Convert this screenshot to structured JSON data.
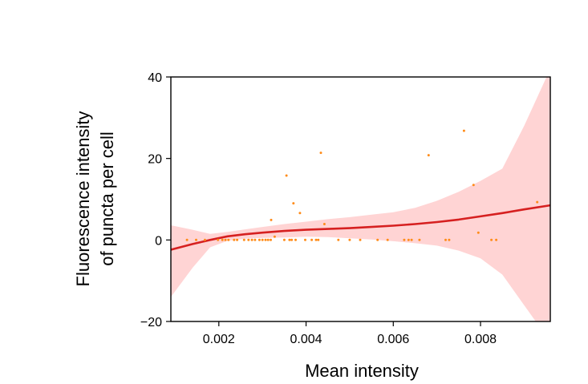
{
  "chart_data": {
    "type": "scatter",
    "title": "",
    "xlabel": "Mean intensity",
    "ylabel_lines": [
      "Fluorescence intensity",
      "of puncta per cell"
    ],
    "xlim": [
      0.0009,
      0.0096
    ],
    "ylim": [
      -20,
      40
    ],
    "xticks": [
      0.002,
      0.004,
      0.006,
      0.008
    ],
    "xtick_labels": [
      "0.002",
      "0.004",
      "0.006",
      "0.008"
    ],
    "yticks": [
      -20,
      0,
      20,
      40
    ],
    "ytick_labels": [
      "−20",
      "0",
      "20",
      "40"
    ],
    "grid": false,
    "colors": {
      "points": "#ff8c1a",
      "fit_line": "#d62020",
      "band": "#ffcccc"
    },
    "points": [
      {
        "x": 0.00127,
        "y": 0
      },
      {
        "x": 0.00148,
        "y": 0
      },
      {
        "x": 0.00168,
        "y": 0
      },
      {
        "x": 0.00198,
        "y": 0
      },
      {
        "x": 0.00208,
        "y": 0
      },
      {
        "x": 0.00215,
        "y": 0
      },
      {
        "x": 0.00222,
        "y": 0
      },
      {
        "x": 0.00235,
        "y": 0
      },
      {
        "x": 0.00242,
        "y": 0
      },
      {
        "x": 0.00258,
        "y": 0
      },
      {
        "x": 0.00268,
        "y": 0
      },
      {
        "x": 0.00276,
        "y": 0
      },
      {
        "x": 0.00283,
        "y": 0
      },
      {
        "x": 0.00293,
        "y": 0
      },
      {
        "x": 0.003,
        "y": 0
      },
      {
        "x": 0.00307,
        "y": 0
      },
      {
        "x": 0.00313,
        "y": 0
      },
      {
        "x": 0.00319,
        "y": 0
      },
      {
        "x": 0.0032,
        "y": 4.9
      },
      {
        "x": 0.00328,
        "y": 0.8
      },
      {
        "x": 0.0035,
        "y": 0
      },
      {
        "x": 0.00355,
        "y": 15.8
      },
      {
        "x": 0.00362,
        "y": 0
      },
      {
        "x": 0.00367,
        "y": 0
      },
      {
        "x": 0.00371,
        "y": 9.0
      },
      {
        "x": 0.00376,
        "y": 0
      },
      {
        "x": 0.00386,
        "y": 6.6
      },
      {
        "x": 0.00398,
        "y": 0
      },
      {
        "x": 0.00413,
        "y": 0
      },
      {
        "x": 0.00423,
        "y": 0
      },
      {
        "x": 0.00428,
        "y": 0
      },
      {
        "x": 0.00434,
        "y": 21.4
      },
      {
        "x": 0.00442,
        "y": 3.9
      },
      {
        "x": 0.00474,
        "y": 0
      },
      {
        "x": 0.005,
        "y": 0
      },
      {
        "x": 0.00524,
        "y": 0
      },
      {
        "x": 0.00564,
        "y": 0
      },
      {
        "x": 0.00587,
        "y": 0
      },
      {
        "x": 0.00625,
        "y": 0
      },
      {
        "x": 0.00635,
        "y": 0
      },
      {
        "x": 0.00642,
        "y": 0
      },
      {
        "x": 0.0066,
        "y": 0
      },
      {
        "x": 0.00681,
        "y": 20.8
      },
      {
        "x": 0.0072,
        "y": 0
      },
      {
        "x": 0.00728,
        "y": 0
      },
      {
        "x": 0.00762,
        "y": 26.8
      },
      {
        "x": 0.00784,
        "y": 13.5
      },
      {
        "x": 0.00795,
        "y": 1.8
      },
      {
        "x": 0.00825,
        "y": 0
      },
      {
        "x": 0.00836,
        "y": 0
      },
      {
        "x": 0.0093,
        "y": 9.3
      }
    ],
    "fit": {
      "x": [
        0.0009,
        0.0014,
        0.0018,
        0.0022,
        0.0026,
        0.003,
        0.0035,
        0.004,
        0.0045,
        0.005,
        0.0055,
        0.006,
        0.0065,
        0.007,
        0.0075,
        0.008,
        0.0085,
        0.009,
        0.0096
      ],
      "y": [
        -2.4,
        -1.0,
        0.0,
        0.9,
        1.4,
        1.8,
        2.2,
        2.5,
        2.7,
        2.9,
        3.2,
        3.5,
        3.9,
        4.4,
        5.0,
        5.8,
        6.6,
        7.5,
        8.5
      ],
      "upper": [
        3.6,
        2.5,
        1.5,
        2.0,
        2.6,
        3.2,
        3.9,
        4.5,
        5.1,
        5.6,
        6.2,
        6.8,
        7.9,
        9.6,
        11.8,
        14.5,
        17.5,
        28.0,
        42.0
      ],
      "lower": [
        -14.0,
        -6.8,
        -1.8,
        -0.2,
        0.3,
        0.5,
        0.6,
        0.8,
        0.7,
        0.4,
        0.1,
        -0.3,
        -0.8,
        -1.4,
        -2.6,
        -4.5,
        -8.5,
        -16.0,
        -25.0
      ]
    }
  }
}
